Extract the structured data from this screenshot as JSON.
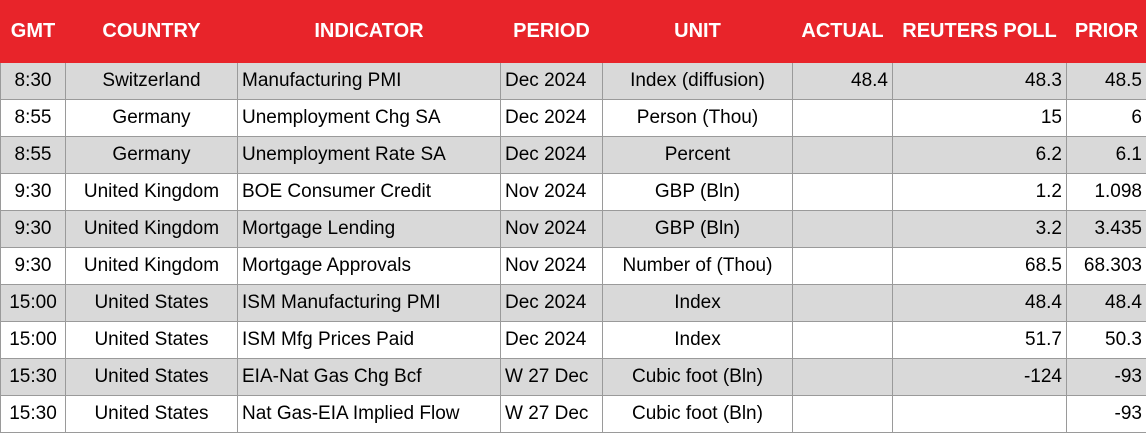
{
  "table": {
    "header": [
      "GMT",
      "COUNTRY",
      "INDICATOR",
      "PERIOD",
      "UNIT",
      "ACTUAL",
      "REUTERS POLL",
      "PRIOR"
    ],
    "rows": [
      [
        "8:30",
        "Switzerland",
        "Manufacturing PMI",
        "Dec 2024",
        "Index (diffusion)",
        "48.4",
        "48.3",
        "48.5"
      ],
      [
        "8:55",
        "Germany",
        "Unemployment Chg SA",
        "Dec 2024",
        "Person (Thou)",
        null,
        "15",
        "6"
      ],
      [
        "8:55",
        "Germany",
        "Unemployment Rate SA",
        "Dec 2024",
        "Percent",
        null,
        "6.2",
        "6.1"
      ],
      [
        "9:30",
        "United Kingdom",
        "BOE Consumer Credit",
        "Nov 2024",
        "GBP (Bln)",
        null,
        "1.2",
        "1.098"
      ],
      [
        "9:30",
        "United Kingdom",
        "Mortgage Lending",
        "Nov 2024",
        "GBP (Bln)",
        null,
        "3.2",
        "3.435"
      ],
      [
        "9:30",
        "United Kingdom",
        "Mortgage Approvals",
        "Nov 2024",
        "Number of (Thou)",
        null,
        "68.5",
        "68.303"
      ],
      [
        "15:00",
        "United States",
        "ISM Manufacturing PMI",
        "Dec 2024",
        "Index",
        null,
        "48.4",
        "48.4"
      ],
      [
        "15:00",
        "United States",
        "ISM Mfg Prices Paid",
        "Dec 2024",
        "Index",
        null,
        "51.7",
        "50.3"
      ],
      [
        "15:30",
        "United States",
        "EIA-Nat Gas Chg Bcf",
        "W 27 Dec",
        "Cubic foot (Bln)",
        null,
        "-124",
        "-93"
      ],
      [
        "15:30",
        "United States",
        "Nat Gas-EIA Implied Flow",
        "W 27 Dec",
        "Cubic foot (Bln)",
        null,
        null,
        "-93"
      ]
    ]
  }
}
